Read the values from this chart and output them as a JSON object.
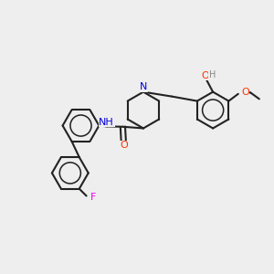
{
  "background_color": "#eeeeee",
  "atom_colors": {
    "N": "#0000dd",
    "O": "#ff3300",
    "F": "#ee00ee",
    "H": "#888888",
    "C": "#222222"
  },
  "bond_color": "#222222",
  "figsize": [
    3.0,
    3.0
  ],
  "dpi": 100,
  "xlim": [
    -0.15,
    1.55
  ],
  "ylim": [
    -0.05,
    1.15
  ]
}
